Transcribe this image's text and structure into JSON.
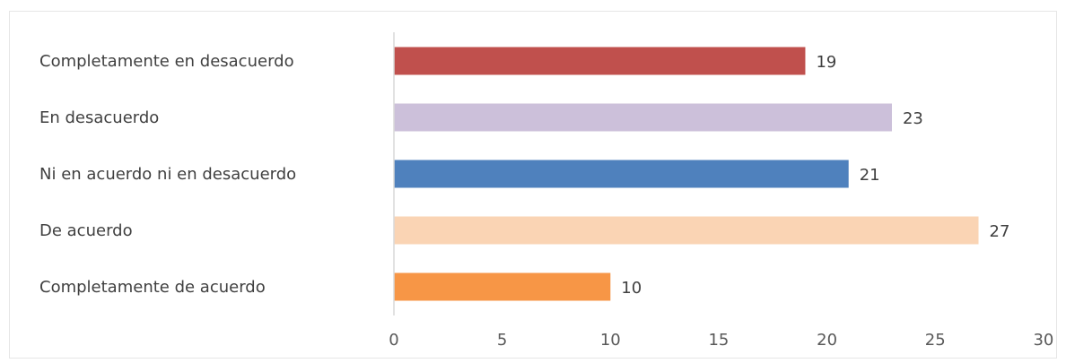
{
  "chart_data": {
    "type": "bar",
    "orientation": "horizontal",
    "categories": [
      "Completamente en desacuerdo",
      "En desacuerdo",
      "Ni en acuerdo ni en desacuerdo",
      "De acuerdo",
      "Completamente de acuerdo"
    ],
    "values": [
      19,
      23,
      21,
      27,
      10
    ],
    "colors": [
      "#c0504d",
      "#ccc0da",
      "#4f81bd",
      "#fad4b4",
      "#f79646"
    ],
    "xlim": [
      0,
      30
    ],
    "xticks": [
      0,
      5,
      10,
      15,
      20,
      25,
      30
    ],
    "data_labels": true,
    "grid": false,
    "legend": false
  }
}
